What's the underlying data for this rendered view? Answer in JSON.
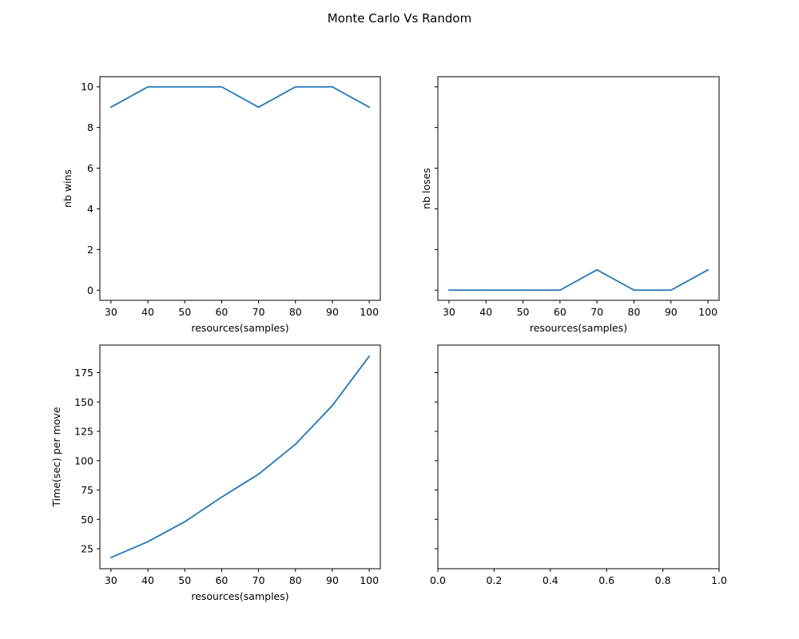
{
  "title": "Monte Carlo Vs Random",
  "colors": {
    "line": "#1f77b4",
    "axes": "#000000",
    "background": "#ffffff"
  },
  "chart_data": [
    {
      "type": "line",
      "position": "top-left",
      "x": [
        30,
        40,
        50,
        60,
        70,
        80,
        90,
        100
      ],
      "series": [
        {
          "values": [
            9,
            10,
            10,
            10,
            9,
            10,
            10,
            9
          ]
        }
      ],
      "xlabel": "resources(samples)",
      "ylabel": "nb wins",
      "xlim": [
        27,
        103
      ],
      "ylim": [
        -0.5,
        10.5
      ],
      "xticks": [
        30,
        40,
        50,
        60,
        70,
        80,
        90,
        100
      ],
      "yticks": [
        0,
        2,
        4,
        6,
        8,
        10
      ],
      "show_x_tick_labels": true,
      "show_y_tick_labels": true,
      "grid": false
    },
    {
      "type": "line",
      "position": "top-right",
      "x": [
        30,
        40,
        50,
        60,
        70,
        80,
        90,
        100
      ],
      "series": [
        {
          "values": [
            0,
            0,
            0,
            0,
            1,
            0,
            0,
            1
          ]
        }
      ],
      "xlabel": "resources(samples)",
      "ylabel": "nb loses",
      "xlim": [
        27,
        103
      ],
      "ylim": [
        -0.5,
        10.5
      ],
      "xticks": [
        30,
        40,
        50,
        60,
        70,
        80,
        90,
        100
      ],
      "yticks": [
        0,
        2,
        4,
        6,
        8,
        10
      ],
      "show_x_tick_labels": true,
      "show_y_tick_labels": false,
      "grid": false
    },
    {
      "type": "line",
      "position": "bottom-left",
      "x": [
        30,
        40,
        50,
        60,
        70,
        80,
        90,
        100
      ],
      "series": [
        {
          "values": [
            17.5,
            31,
            48,
            69,
            88.5,
            114,
            147,
            189
          ]
        }
      ],
      "xlabel": "resources(samples)",
      "ylabel": "Time(sec) per move",
      "xlim": [
        27,
        103
      ],
      "ylim": [
        8.0,
        198.5
      ],
      "xticks": [
        30,
        40,
        50,
        60,
        70,
        80,
        90,
        100
      ],
      "yticks": [
        25,
        50,
        75,
        100,
        125,
        150,
        175
      ],
      "show_x_tick_labels": true,
      "show_y_tick_labels": true,
      "grid": false
    },
    {
      "type": "line",
      "position": "bottom-right",
      "x": [],
      "series": [],
      "xlabel": "",
      "ylabel": "",
      "xlim": [
        0,
        1
      ],
      "ylim": [
        8.0,
        198.5
      ],
      "xticks": [
        0.0,
        0.2,
        0.4,
        0.6,
        0.8,
        1.0
      ],
      "xtick_labels": [
        "0.0",
        "0.2",
        "0.4",
        "0.6",
        "0.8",
        "1.0"
      ],
      "yticks": [
        25,
        50,
        75,
        100,
        125,
        150,
        175
      ],
      "show_x_tick_labels": true,
      "show_y_tick_labels": false,
      "grid": false
    }
  ]
}
